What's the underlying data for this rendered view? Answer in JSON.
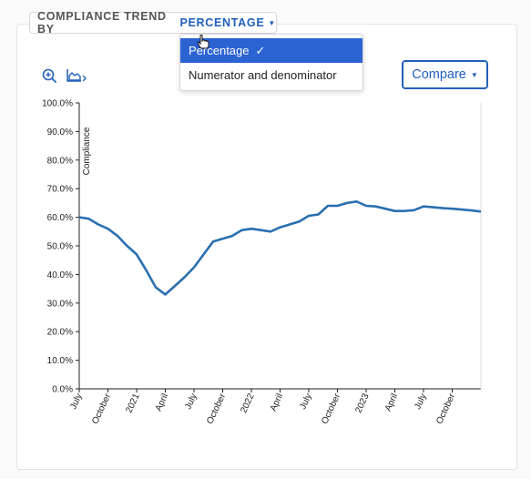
{
  "header": {
    "prefix": "COMPLIANCE TREND BY",
    "selected": "PERCENTAGE"
  },
  "menu": {
    "items": [
      "Percentage",
      "Numerator and denominator"
    ],
    "selected_index": 0
  },
  "toolbar": {
    "zoom_icon": "zoom-in-icon",
    "chart_icon": "area-chart-icon",
    "compare_label": "Compare"
  },
  "colors": {
    "accent": "#1f5fbf",
    "line": "#2a6fb0",
    "menu_active": "#2b63d3"
  },
  "chart_data": {
    "type": "line",
    "ylabel": "Compliance",
    "ylim": [
      0,
      100
    ],
    "y_ticks": [
      "0.0%",
      "10.0%",
      "20.0%",
      "30.0%",
      "40.0%",
      "50.0%",
      "60.0%",
      "70.0%",
      "80.0%",
      "90.0%",
      "100.0%"
    ],
    "x_ticks": [
      "July",
      "October",
      "2021",
      "April",
      "July",
      "October",
      "2022",
      "April",
      "July",
      "October",
      "2023",
      "April",
      "July",
      "October"
    ],
    "x_tick_months": [
      0,
      3,
      6,
      9,
      12,
      15,
      18,
      21,
      24,
      27,
      30,
      33,
      36,
      39
    ],
    "series": [
      {
        "x": [
          0,
          1,
          2,
          3,
          4,
          5,
          6,
          7,
          8,
          9,
          10,
          11,
          12,
          13,
          14,
          15,
          16,
          17,
          18,
          19,
          20,
          21,
          22,
          23,
          24,
          25,
          26,
          27,
          28,
          29,
          30,
          31,
          32,
          33,
          34,
          35,
          36,
          37,
          38,
          39,
          40,
          41,
          42
        ],
        "values": [
          60,
          59.5,
          57.5,
          56,
          53.5,
          50,
          47,
          41.5,
          35.5,
          33,
          36,
          39,
          42.5,
          47,
          51.5,
          52.5,
          53.5,
          55.5,
          56,
          55.5,
          55,
          56.5,
          57.5,
          58.5,
          60.5,
          61,
          64,
          64,
          65,
          65.5,
          64,
          63.8,
          63,
          62.2,
          62.2,
          62.5,
          63.8,
          63.5,
          63.2,
          63,
          62.7,
          62.4,
          62
        ]
      }
    ]
  }
}
